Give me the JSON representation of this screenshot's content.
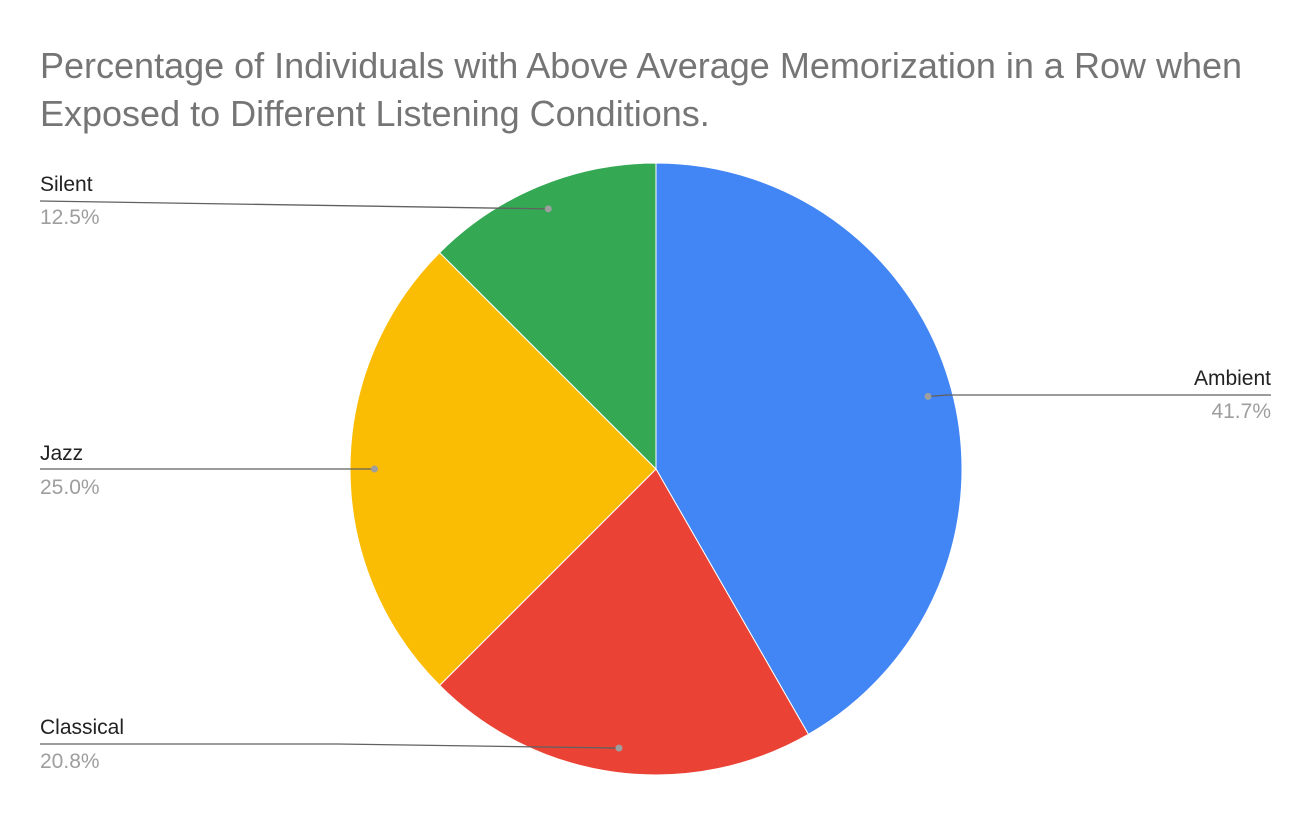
{
  "chart_data": {
    "type": "pie",
    "title": "Percentage of Individuals with Above Average Memorization in a Row when Exposed to Different Listening Conditions.",
    "start_angle_deg": 0,
    "direction": "clockwise",
    "slices": [
      {
        "label": "Ambient",
        "value": 41.7,
        "value_label": "41.7%",
        "color": "#4285F4"
      },
      {
        "label": "Classical",
        "value": 20.8,
        "value_label": "20.8%",
        "color": "#EA4335"
      },
      {
        "label": "Jazz",
        "value": 25.0,
        "value_label": "25.0%",
        "color": "#FBBC04"
      },
      {
        "label": "Silent",
        "value": 12.5,
        "value_label": "12.5%",
        "color": "#34A853"
      }
    ],
    "label_style": "outside-with-leader-lines",
    "legend": "none"
  }
}
